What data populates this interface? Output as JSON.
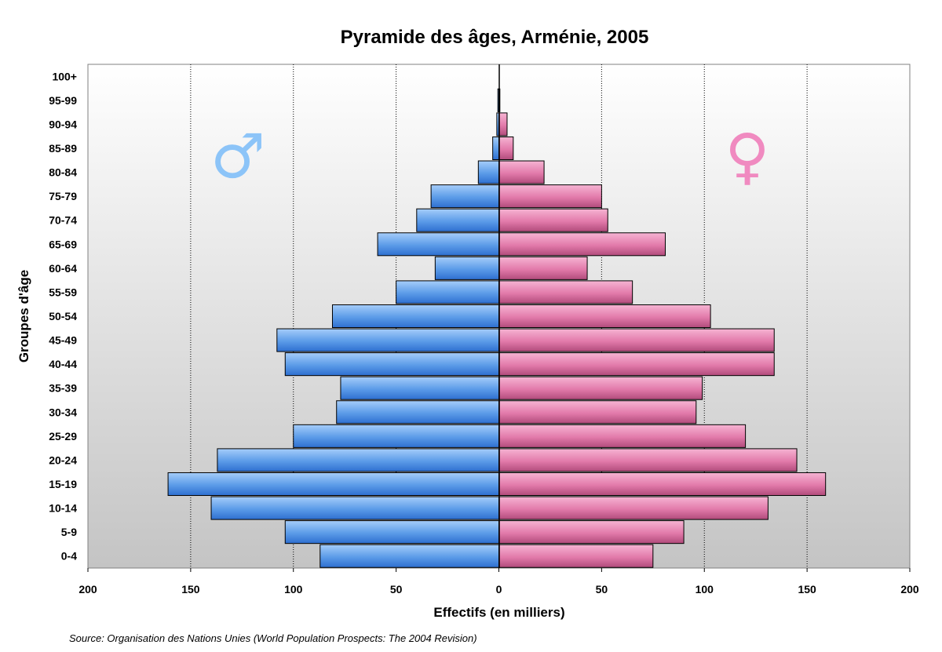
{
  "chart_data": {
    "type": "bar",
    "orientation": "horizontal",
    "title": "Pyramide des âges, Arménie, 2005",
    "xlabel": "Effectifs (en milliers)",
    "ylabel": "Groupes d'âge",
    "source": "Source: Organisation des Nations Unies (World Population Prospects: The 2004 Revision)",
    "xlim": [
      -200,
      200
    ],
    "x_ticks": [
      "200",
      "150",
      "100",
      "50",
      "0",
      "50",
      "100",
      "150",
      "200"
    ],
    "grid": "vertical dotted",
    "categories": [
      "0-4",
      "5-9",
      "10-14",
      "15-19",
      "20-24",
      "25-29",
      "30-34",
      "35-39",
      "40-44",
      "45-49",
      "50-54",
      "55-59",
      "60-64",
      "65-69",
      "70-74",
      "75-79",
      "80-84",
      "85-89",
      "90-94",
      "95-99",
      "100+"
    ],
    "series": [
      {
        "symbol": "♂",
        "color": "#5b9be8",
        "values": [
          87,
          104,
          140,
          161,
          137,
          100,
          79,
          77,
          104,
          108,
          81,
          50,
          31,
          59,
          40,
          33,
          10,
          3,
          1,
          0.5,
          0
        ]
      },
      {
        "symbol": "♀",
        "color": "#e87aa8",
        "values": [
          75,
          90,
          131,
          159,
          145,
          120,
          96,
          99,
          134,
          134,
          103,
          65,
          43,
          81,
          53,
          50,
          22,
          7,
          4,
          0.5,
          0
        ]
      }
    ]
  }
}
